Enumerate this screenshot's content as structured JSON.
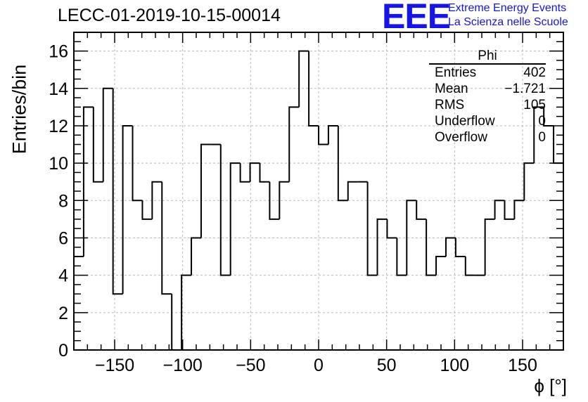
{
  "header": {
    "title": "LECC-01-2019-10-15-00014",
    "logo": "EEE",
    "logo_line1": "Extreme Energy Events",
    "logo_line2": "La Scienza nelle Scuole"
  },
  "stats_box": {
    "title": "Phi",
    "rows": [
      {
        "label": "Entries",
        "value": "402"
      },
      {
        "label": "Mean",
        "value": "−1.721"
      },
      {
        "label": "RMS",
        "value": "105"
      },
      {
        "label": "Underflow",
        "value": "0"
      },
      {
        "label": "Overflow",
        "value": "0"
      }
    ]
  },
  "chart_data": {
    "type": "histogram",
    "title": "LECC-01-2019-10-15-00014",
    "xlabel": "ϕ [°]",
    "ylabel": "Entries/bin",
    "xlim": [
      -180,
      180
    ],
    "ylim": [
      0,
      17
    ],
    "grid": true,
    "bin_width": 7.2,
    "x_ticks": [
      -150,
      -100,
      -50,
      0,
      50,
      100,
      150
    ],
    "x_tick_labels": [
      "−150",
      "−100",
      "−50",
      "0",
      "50",
      "100",
      "150"
    ],
    "y_ticks": [
      0,
      2,
      4,
      6,
      8,
      10,
      12,
      14,
      16
    ],
    "y_tick_labels": [
      "0",
      "2",
      "4",
      "6",
      "8",
      "10",
      "12",
      "14",
      "16"
    ],
    "values": [
      5,
      13,
      9,
      14,
      3,
      12,
      8,
      7,
      9,
      3,
      0,
      4,
      6,
      11,
      11,
      4,
      10,
      9,
      10,
      9,
      7,
      9,
      13,
      16,
      12,
      11,
      12,
      8,
      9,
      9,
      4,
      7,
      6,
      4,
      8,
      7,
      4,
      5,
      6,
      5,
      4,
      4,
      7,
      8,
      7,
      8,
      10,
      13,
      12,
      10
    ],
    "line_color": "#000000"
  }
}
